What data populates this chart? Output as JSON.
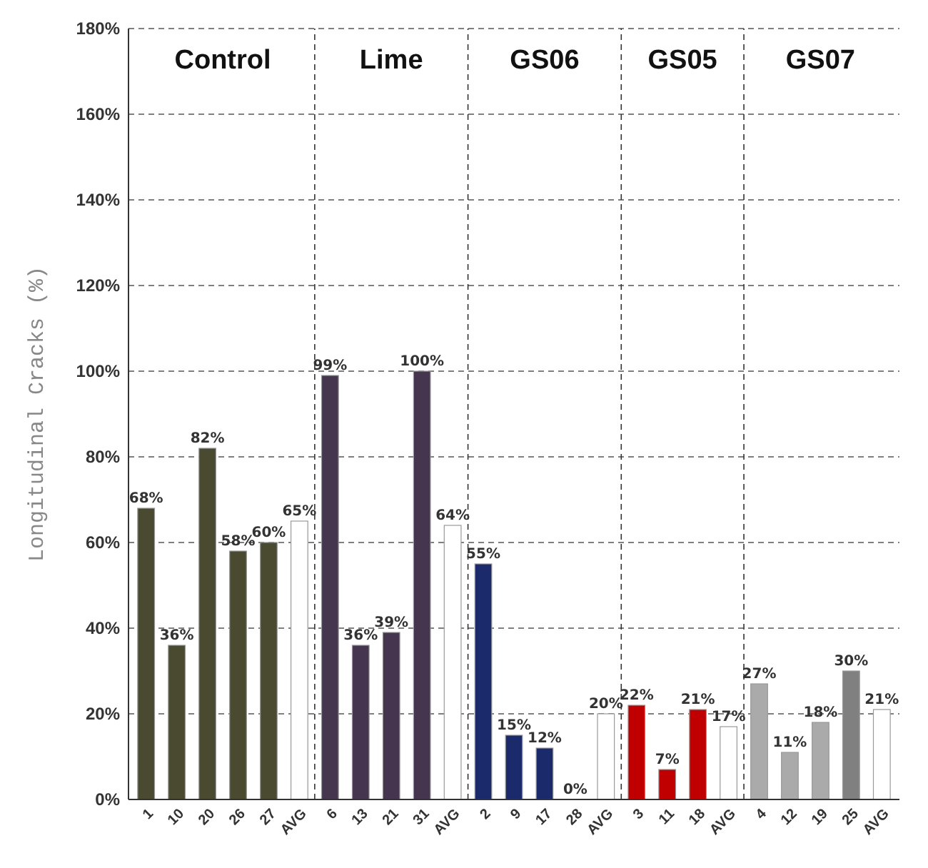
{
  "chart_data": {
    "type": "bar",
    "ylabel": "Longitudinal Cracks (%)",
    "categories": [
      "1",
      "10",
      "20",
      "26",
      "27",
      "AVG",
      "6",
      "13",
      "21",
      "31",
      "AVG",
      "2",
      "9",
      "17",
      "28",
      "AVG",
      "3",
      "11",
      "18",
      "AVG",
      "4",
      "12",
      "19",
      "25",
      "AVG"
    ],
    "values": [
      68,
      36,
      82,
      58,
      60,
      65,
      99,
      36,
      39,
      100,
      64,
      55,
      15,
      12,
      0,
      20,
      22,
      7,
      21,
      17,
      27,
      11,
      18,
      30,
      21
    ],
    "colors": [
      "#4a4a30",
      "#4a4a30",
      "#4a4a30",
      "#4a4a30",
      "#4a4a30",
      "#ffffff",
      "#45354f",
      "#45354f",
      "#45354f",
      "#45354f",
      "#ffffff",
      "#1a2a6a",
      "#1a2a6a",
      "#1a2a6a",
      "#1a2a6a",
      "#ffffff",
      "#c00000",
      "#c00000",
      "#c00000",
      "#ffffff",
      "#aaaaaa",
      "#aaaaaa",
      "#aaaaaa",
      "#808080",
      "#ffffff"
    ],
    "value_labels": [
      "68%",
      "36%",
      "82%",
      "58%",
      "60%",
      "65%",
      "99%",
      "36%",
      "39%",
      "100%",
      "64%",
      "55%",
      "15%",
      "12%",
      "0%",
      "20%",
      "22%",
      "7%",
      "21%",
      "17%",
      "27%",
      "11%",
      "18%",
      "30%",
      "21%"
    ],
    "ylim": [
      0,
      180
    ],
    "yticks": [
      {
        "value": 0,
        "label": "0%"
      },
      {
        "value": 20,
        "label": "20%"
      },
      {
        "value": 40,
        "label": "40%"
      },
      {
        "value": 60,
        "label": "60%"
      },
      {
        "value": 80,
        "label": "80%"
      },
      {
        "value": 100,
        "label": "100%"
      },
      {
        "value": 120,
        "label": "120%"
      },
      {
        "value": 140,
        "label": "140%"
      },
      {
        "value": 160,
        "label": "160%"
      },
      {
        "value": 180,
        "label": "180%"
      }
    ],
    "grid": "y",
    "annotations": [
      "Control",
      "Lime",
      "GS06",
      "GS05",
      "GS07"
    ]
  }
}
